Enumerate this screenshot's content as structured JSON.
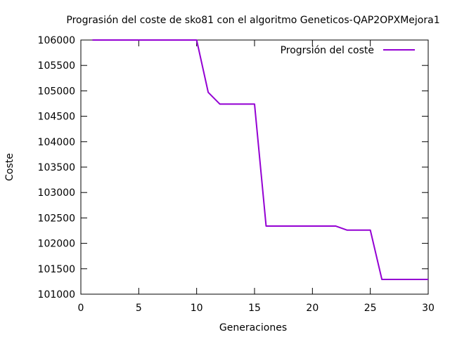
{
  "chart_data": {
    "type": "line",
    "title": "Prograsión del coste de sko81 con el algoritmo Geneticos-QAP2OPXMejora1",
    "xlabel": "Generaciones",
    "ylabel": "Coste",
    "xlim": [
      0,
      30
    ],
    "ylim": [
      101000,
      106000
    ],
    "xticks": [
      0,
      5,
      10,
      15,
      20,
      25,
      30
    ],
    "yticks": [
      101000,
      101500,
      102000,
      102500,
      103000,
      103500,
      104000,
      104500,
      105000,
      105500,
      106000
    ],
    "grid": false,
    "legend_position": "top-right",
    "series": [
      {
        "name": "Progrsión del coste",
        "color": "#9400d3",
        "x": [
          1,
          10,
          11,
          12,
          15,
          16,
          22,
          23,
          25,
          26,
          30
        ],
        "y": [
          106000,
          106000,
          104970,
          104740,
          104740,
          102340,
          102340,
          102260,
          102260,
          101290,
          101290
        ]
      }
    ]
  }
}
